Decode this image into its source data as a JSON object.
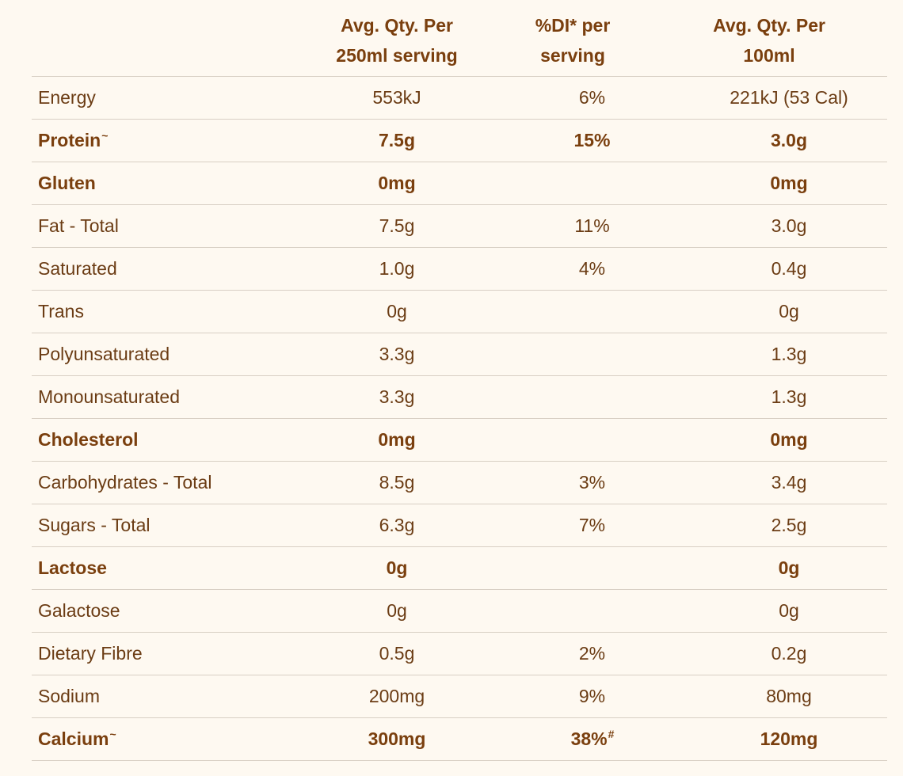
{
  "header": {
    "col1_line1": "Avg. Qty. Per",
    "col1_line2": "250ml serving",
    "col2_line1": "%DI* per",
    "col2_line2": "serving",
    "col3_line1": "Avg. Qty. Per",
    "col3_line2": "100ml"
  },
  "rows": [
    {
      "name": "Energy",
      "name_sup": "",
      "per_serving": "553kJ",
      "di": "6%",
      "di_sup": "",
      "per_100ml": "221kJ (53 Cal)",
      "bold": false
    },
    {
      "name": "Protein",
      "name_sup": "~",
      "per_serving": "7.5g",
      "di": "15%",
      "di_sup": "",
      "per_100ml": "3.0g",
      "bold": true
    },
    {
      "name": "Gluten",
      "name_sup": "",
      "per_serving": "0mg",
      "di": "",
      "di_sup": "",
      "per_100ml": "0mg",
      "bold": true
    },
    {
      "name": "Fat - Total",
      "name_sup": "",
      "per_serving": "7.5g",
      "di": "11%",
      "di_sup": "",
      "per_100ml": "3.0g",
      "bold": false
    },
    {
      "name": "Saturated",
      "name_sup": "",
      "per_serving": "1.0g",
      "di": "4%",
      "di_sup": "",
      "per_100ml": "0.4g",
      "bold": false
    },
    {
      "name": "Trans",
      "name_sup": "",
      "per_serving": "0g",
      "di": "",
      "di_sup": "",
      "per_100ml": "0g",
      "bold": false
    },
    {
      "name": "Polyunsaturated",
      "name_sup": "",
      "per_serving": "3.3g",
      "di": "",
      "di_sup": "",
      "per_100ml": "1.3g",
      "bold": false
    },
    {
      "name": "Monounsaturated",
      "name_sup": "",
      "per_serving": "3.3g",
      "di": "",
      "di_sup": "",
      "per_100ml": "1.3g",
      "bold": false
    },
    {
      "name": "Cholesterol",
      "name_sup": "",
      "per_serving": "0mg",
      "di": "",
      "di_sup": "",
      "per_100ml": "0mg",
      "bold": true
    },
    {
      "name": "Carbohydrates - Total",
      "name_sup": "",
      "per_serving": "8.5g",
      "di": "3%",
      "di_sup": "",
      "per_100ml": "3.4g",
      "bold": false
    },
    {
      "name": "Sugars - Total",
      "name_sup": "",
      "per_serving": "6.3g",
      "di": "7%",
      "di_sup": "",
      "per_100ml": "2.5g",
      "bold": false
    },
    {
      "name": "Lactose",
      "name_sup": "",
      "per_serving": "0g",
      "di": "",
      "di_sup": "",
      "per_100ml": "0g",
      "bold": true
    },
    {
      "name": "Galactose",
      "name_sup": "",
      "per_serving": "0g",
      "di": "",
      "di_sup": "",
      "per_100ml": "0g",
      "bold": false
    },
    {
      "name": "Dietary Fibre",
      "name_sup": "",
      "per_serving": "0.5g",
      "di": "2%",
      "di_sup": "",
      "per_100ml": "0.2g",
      "bold": false
    },
    {
      "name": "Sodium",
      "name_sup": "",
      "per_serving": "200mg",
      "di": "9%",
      "di_sup": "",
      "per_100ml": "80mg",
      "bold": false
    },
    {
      "name": "Calcium",
      "name_sup": "~",
      "per_serving": "300mg",
      "di": "38%",
      "di_sup": "#",
      "per_100ml": "120mg",
      "bold": true
    }
  ],
  "colors": {
    "background": "#fef9f1",
    "text": "#7a3f0e",
    "divider": "#d8cfc4"
  }
}
